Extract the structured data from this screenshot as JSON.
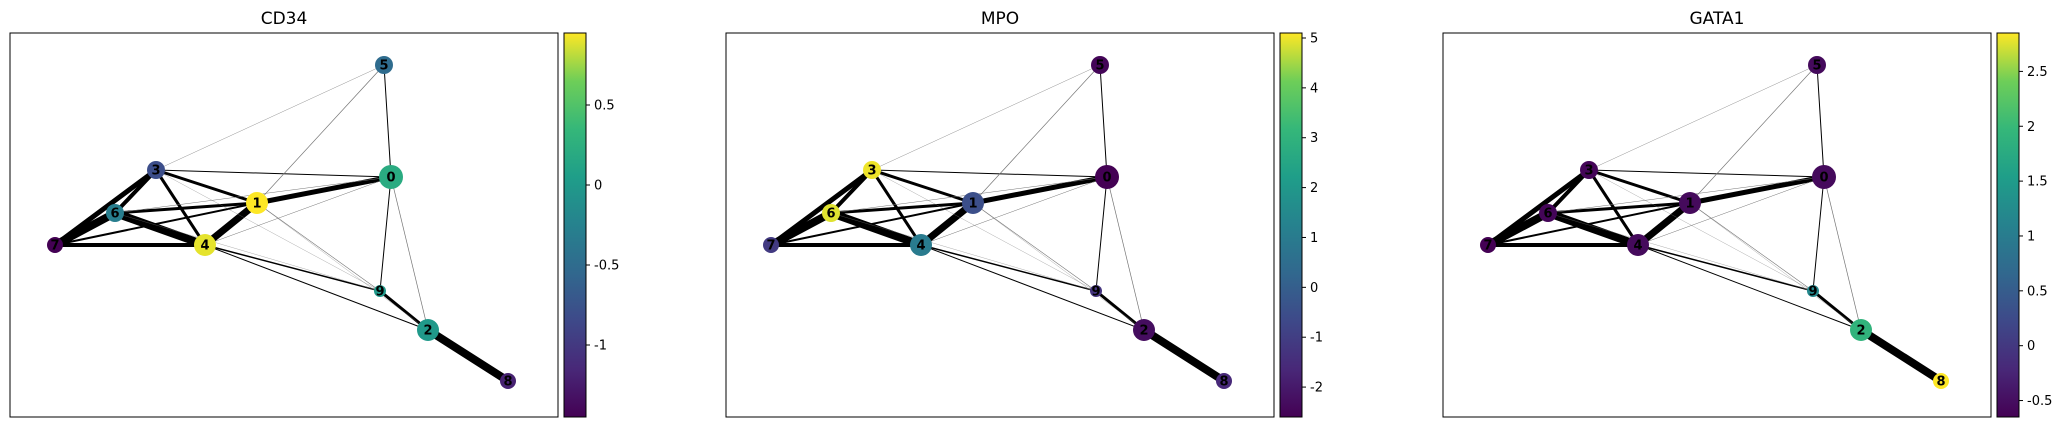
{
  "chart_data": [
    {
      "type": "graph",
      "title": "CD34",
      "colorbar": {
        "colormap": "viridis",
        "min": -1.45,
        "max": 0.95,
        "ticks": [
          "0.5",
          "0",
          "-0.5",
          "-1"
        ],
        "tick_values": [
          0.5,
          0,
          -0.5,
          -1
        ]
      },
      "node_values": [
        0.2,
        0.95,
        0.0,
        -0.8,
        0.9,
        -0.5,
        -0.3,
        -1.45,
        -1.2,
        0.0
      ]
    },
    {
      "type": "graph",
      "title": "MPO",
      "colorbar": {
        "colormap": "viridis",
        "min": -2.6,
        "max": 5.1,
        "ticks": [
          "5",
          "4",
          "3",
          "2",
          "1",
          "0",
          "-1",
          "-2"
        ],
        "tick_values": [
          5,
          4,
          3,
          2,
          1,
          0,
          -1,
          -2
        ]
      },
      "node_values": [
        -2.6,
        -0.5,
        -2.3,
        5.0,
        1.0,
        -2.5,
        4.9,
        -1.1,
        -1.6,
        -1.3
      ]
    },
    {
      "type": "graph",
      "title": "GATA1",
      "colorbar": {
        "colormap": "viridis",
        "min": -0.65,
        "max": 2.85,
        "ticks": [
          "2.5",
          "2",
          "1.5",
          "1",
          "0.5",
          "0",
          "-0.5"
        ],
        "tick_values": [
          2.5,
          2,
          1.5,
          1,
          0.5,
          0,
          -0.5
        ]
      },
      "node_values": [
        -0.55,
        -0.55,
        1.9,
        -0.6,
        -0.55,
        -0.55,
        -0.6,
        -0.65,
        2.85,
        1.2
      ]
    }
  ],
  "graph": {
    "node_labels": [
      "0",
      "1",
      "2",
      "3",
      "4",
      "5",
      "6",
      "7",
      "8",
      "9"
    ],
    "node_sizes": [
      12,
      11,
      11,
      9,
      11,
      9,
      9,
      8,
      8,
      6
    ],
    "edges": [
      {
        "from": 7,
        "to": 6,
        "weight": 8
      },
      {
        "from": 7,
        "to": 3,
        "weight": 5
      },
      {
        "from": 7,
        "to": 4,
        "weight": 4
      },
      {
        "from": 7,
        "to": 1,
        "weight": 2
      },
      {
        "from": 6,
        "to": 3,
        "weight": 4
      },
      {
        "from": 6,
        "to": 4,
        "weight": 8
      },
      {
        "from": 6,
        "to": 1,
        "weight": 3
      },
      {
        "from": 3,
        "to": 4,
        "weight": 3
      },
      {
        "from": 3,
        "to": 1,
        "weight": 3
      },
      {
        "from": 3,
        "to": 0,
        "weight": 1
      },
      {
        "from": 4,
        "to": 1,
        "weight": 7
      },
      {
        "from": 1,
        "to": 0,
        "weight": 5
      },
      {
        "from": 4,
        "to": 9,
        "weight": 1.5
      },
      {
        "from": 4,
        "to": 2,
        "weight": 1
      },
      {
        "from": 2,
        "to": 8,
        "weight": 8
      },
      {
        "from": 9,
        "to": 2,
        "weight": 3
      },
      {
        "from": 0,
        "to": 9,
        "weight": 1
      },
      {
        "from": 0,
        "to": 2,
        "weight": 0.7
      },
      {
        "from": 5,
        "to": 0,
        "weight": 1
      },
      {
        "from": 5,
        "to": 1,
        "weight": 0.7
      },
      {
        "from": 5,
        "to": 3,
        "weight": 0.4
      },
      {
        "from": 1,
        "to": 9,
        "weight": 0.6
      },
      {
        "from": 6,
        "to": 9,
        "weight": 0.3
      },
      {
        "from": 3,
        "to": 9,
        "weight": 0.3
      },
      {
        "from": 4,
        "to": 0,
        "weight": 0.5
      },
      {
        "from": 6,
        "to": 0,
        "weight": 0.5
      },
      {
        "from": 1,
        "to": 2,
        "weight": 0.3
      }
    ]
  }
}
